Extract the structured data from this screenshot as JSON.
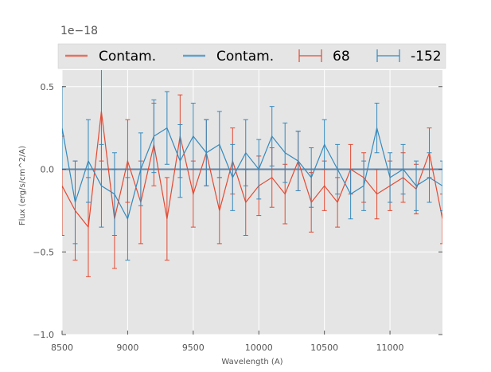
{
  "chart_data": {
    "type": "line",
    "offset_label": "1e−18",
    "xlabel": "Wavelength (A)",
    "ylabel": "Flux (erg/s/cm^2/A)",
    "xlim": [
      8500,
      11400
    ],
    "ylim": [
      -1.0,
      0.6
    ],
    "xticks": [
      8500,
      9000,
      9500,
      10000,
      10500,
      11000
    ],
    "xtick_labels": [
      "8500",
      "9000",
      "9500",
      "10000",
      "10500",
      "11000"
    ],
    "yticks": [
      -1.0,
      -0.5,
      0.0,
      0.5
    ],
    "ytick_labels": [
      "−1.0",
      "−0.5",
      "0.0",
      "0.5"
    ],
    "grid": true,
    "legend_position": "top",
    "series": [
      {
        "name": "Contam.",
        "kind": "line",
        "color": "#e24a33",
        "x": [
          8500,
          9000,
          9500,
          10000,
          10500,
          11000,
          11400
        ],
        "y": [
          0.0,
          0.0,
          0.0,
          0.0,
          0.0,
          0.0,
          0.0
        ]
      },
      {
        "name": "Contam.",
        "kind": "line",
        "color": "#348abd",
        "x": [
          8500,
          9000,
          9500,
          10000,
          10500,
          11000,
          11400
        ],
        "y": [
          0.0,
          0.0,
          0.0,
          0.0,
          0.0,
          0.0,
          0.0
        ]
      },
      {
        "name": "68",
        "kind": "errorbar",
        "color": "#e24a33",
        "x": [
          8500,
          8600,
          8700,
          8800,
          8900,
          9000,
          9100,
          9200,
          9300,
          9400,
          9500,
          9600,
          9700,
          9800,
          9900,
          10000,
          10100,
          10200,
          10300,
          10400,
          10500,
          10600,
          10700,
          10800,
          10900,
          11000,
          11100,
          11200,
          11300,
          11400
        ],
        "y": [
          -0.1,
          -0.25,
          -0.35,
          0.35,
          -0.3,
          0.05,
          -0.2,
          0.15,
          -0.3,
          0.2,
          -0.15,
          0.1,
          -0.25,
          0.05,
          -0.2,
          -0.1,
          -0.05,
          -0.15,
          0.05,
          -0.2,
          -0.1,
          -0.2,
          0.0,
          -0.05,
          -0.15,
          -0.1,
          -0.05,
          -0.12,
          0.1,
          -0.3
        ],
        "err": [
          0.3,
          0.3,
          0.3,
          0.3,
          0.3,
          0.25,
          0.25,
          0.25,
          0.25,
          0.25,
          0.2,
          0.2,
          0.2,
          0.2,
          0.2,
          0.18,
          0.18,
          0.18,
          0.18,
          0.18,
          0.15,
          0.15,
          0.15,
          0.15,
          0.15,
          0.15,
          0.15,
          0.15,
          0.15,
          0.15
        ]
      },
      {
        "name": "-152",
        "kind": "errorbar",
        "color": "#348abd",
        "x": [
          8500,
          8600,
          8700,
          8800,
          8900,
          9000,
          9100,
          9200,
          9300,
          9400,
          9500,
          9600,
          9700,
          9800,
          9900,
          10000,
          10100,
          10200,
          10300,
          10400,
          10500,
          10600,
          10700,
          10800,
          10900,
          11000,
          11100,
          11200,
          11300,
          11400
        ],
        "y": [
          0.25,
          -0.2,
          0.05,
          -0.1,
          -0.15,
          -0.3,
          0.0,
          0.2,
          0.25,
          0.05,
          0.2,
          0.1,
          0.15,
          -0.05,
          0.1,
          0.0,
          0.2,
          0.1,
          0.05,
          -0.05,
          0.15,
          0.0,
          -0.15,
          -0.1,
          0.25,
          -0.05,
          0.0,
          -0.1,
          -0.05,
          -0.1
        ],
        "err": [
          0.25,
          0.25,
          0.25,
          0.25,
          0.25,
          0.25,
          0.22,
          0.22,
          0.22,
          0.22,
          0.2,
          0.2,
          0.2,
          0.2,
          0.2,
          0.18,
          0.18,
          0.18,
          0.18,
          0.18,
          0.15,
          0.15,
          0.15,
          0.15,
          0.15,
          0.15,
          0.15,
          0.15,
          0.15,
          0.15
        ]
      }
    ]
  }
}
